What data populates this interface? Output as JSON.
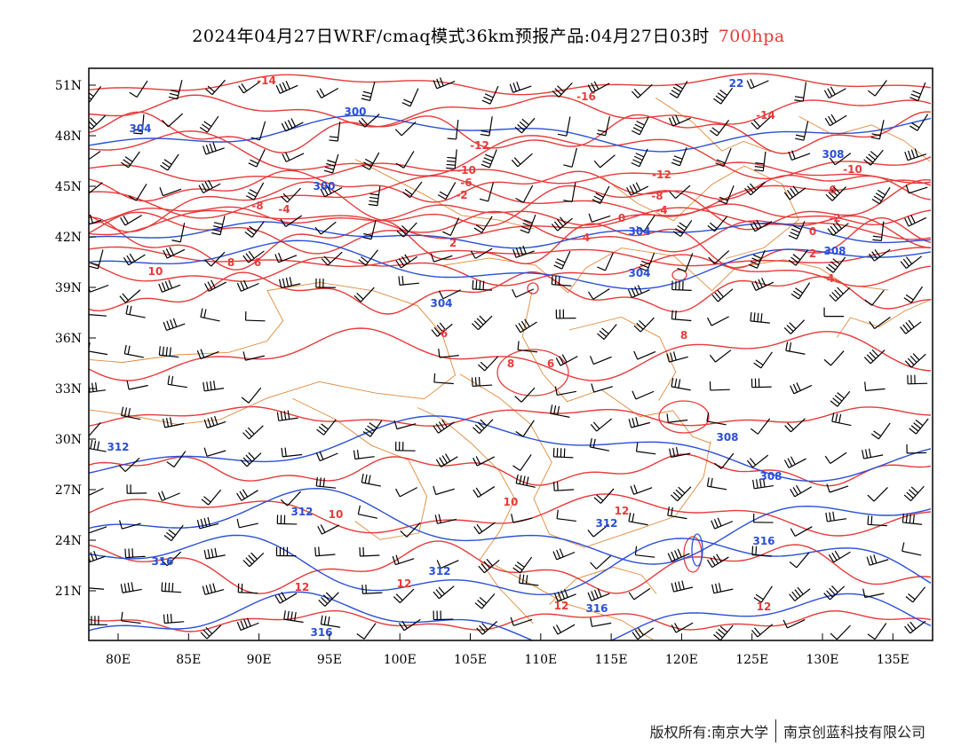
{
  "title": {
    "text": "2024年04月27日WRF/cmaq模式36km预报产品:04月27日03时",
    "level": "700hpa"
  },
  "map": {
    "lon_ticks": [
      "80E",
      "85E",
      "90E",
      "95E",
      "100E",
      "105E",
      "110E",
      "115E",
      "120E",
      "125E",
      "130E",
      "135E"
    ],
    "lat_ticks": [
      "51N",
      "48N",
      "45N",
      "42N",
      "39N",
      "36N",
      "33N",
      "30N",
      "27N",
      "24N",
      "21N"
    ],
    "colors": {
      "temperature": "#e83a3a",
      "height": "#2a4fd8",
      "boundary": "#e08a3a",
      "wind": "#000000"
    },
    "temperature_labels": [
      "-14",
      "-16",
      "-14",
      "-12",
      "-12",
      "-10",
      "-10",
      "-8",
      "-8",
      "-6",
      "-6",
      "-4",
      "-4",
      "-2",
      "-2",
      "0",
      "0",
      "2",
      "2",
      "4",
      "4",
      "6",
      "6",
      "6",
      "8",
      "8",
      "8",
      "10",
      "10",
      "10",
      "12",
      "12",
      "12",
      "12",
      "12"
    ],
    "height_labels": [
      "300",
      "300",
      "304",
      "304",
      "304",
      "304",
      "308",
      "308",
      "308",
      "308",
      "312",
      "312",
      "312",
      "312",
      "316",
      "316",
      "316",
      "316",
      "22"
    ]
  },
  "footer": {
    "left": "版权所有:南京大学",
    "right": "南京创蓝科技有限公司"
  }
}
